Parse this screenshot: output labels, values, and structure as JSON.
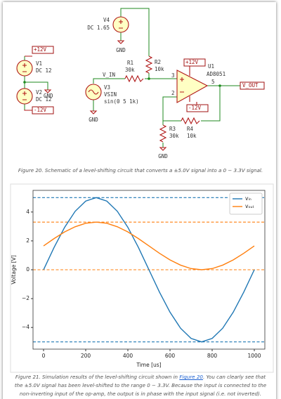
{
  "schematic": {
    "power_flags": [
      "+12V",
      "-12V",
      "+12V",
      "-12V"
    ],
    "grounds": [
      "GND",
      "GND",
      "GND",
      "GND"
    ],
    "V1": {
      "ref": "V1",
      "value": "DC 12"
    },
    "V2": {
      "ref": "V2",
      "value": "DC 12"
    },
    "V3": {
      "ref": "V3",
      "type": "VSIN",
      "value": "sin(0 5 1k)"
    },
    "V4": {
      "ref": "V4",
      "value": "DC 1.65"
    },
    "R1": {
      "ref": "R1",
      "value": "30k"
    },
    "R2": {
      "ref": "R2",
      "value": "10k"
    },
    "R3": {
      "ref": "R3",
      "value": "30k"
    },
    "R4": {
      "ref": "R4",
      "value": "10k"
    },
    "U1": {
      "ref": "U1",
      "value": "AD8051",
      "pins": [
        "3",
        "2",
        "5"
      ]
    },
    "net_labels": [
      "V_IN",
      "V_OUT"
    ]
  },
  "figure20_caption": "Figure 20. Schematic of a level-shifting circuit that converts a ±5.0V signal into a 0 − 3.3V signal.",
  "chart_data": {
    "type": "line",
    "x_label": "Time [us]",
    "y_label": "Voltage [V]",
    "x": [
      0,
      50,
      100,
      150,
      200,
      250,
      300,
      350,
      400,
      450,
      500,
      550,
      600,
      650,
      700,
      750,
      800,
      850,
      900,
      950,
      1000
    ],
    "series": [
      {
        "name": "vᵢₙ",
        "color": "#1f77b4",
        "values": [
          0,
          1.55,
          2.94,
          4.05,
          4.76,
          5,
          4.76,
          4.05,
          2.94,
          1.55,
          0,
          -1.55,
          -2.94,
          -4.05,
          -4.76,
          -5,
          -4.76,
          -4.05,
          -2.94,
          -1.55,
          0
        ]
      },
      {
        "name": "vₒᵤₜ",
        "color": "#ff7f0e",
        "values": [
          1.65,
          2.16,
          2.62,
          2.98,
          3.22,
          3.3,
          3.22,
          2.98,
          2.62,
          2.16,
          1.65,
          1.14,
          0.68,
          0.32,
          0.08,
          0,
          0.08,
          0.32,
          0.68,
          1.14,
          1.65
        ]
      }
    ],
    "hlines": [
      {
        "value": 5,
        "color": "#1f77b4"
      },
      {
        "value": -5,
        "color": "#1f77b4"
      },
      {
        "value": 3.3,
        "color": "#ff7f0e"
      },
      {
        "value": 0,
        "color": "#ff7f0e"
      }
    ],
    "xlim": [
      -50,
      1050
    ],
    "ylim": [
      -5.5,
      5.5
    ],
    "xticks": [
      0,
      200,
      400,
      600,
      800,
      1000
    ],
    "yticks": [
      {
        "value": -4,
        "label": "−4"
      },
      {
        "value": -2,
        "label": "−2"
      },
      0,
      2,
      4
    ],
    "legend": "upper right",
    "grid": false
  },
  "figure21_caption": {
    "before": "Figure 21. Simulation results of the level-shifting circuit shown in ",
    "link": "Figure 20",
    "after": ". You can clearly see that the ±5.0V signal has been level-shifted to the range 0 − 3.3V. Because the input is connected to the non-inverting input of the op-amp, the output is in phase with the input signal (i.e. not inverted)."
  }
}
